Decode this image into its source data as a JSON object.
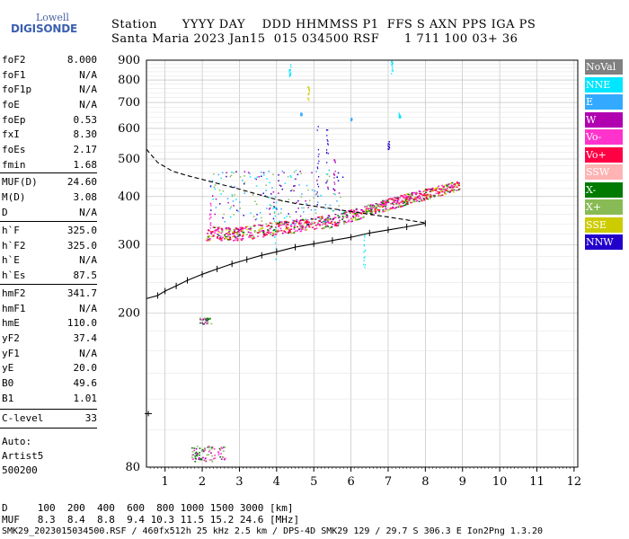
{
  "logo": {
    "line1": "Lowell",
    "line2": "DIGISONDE"
  },
  "header": {
    "line1": "Station      YYYY DAY    DDD HHMMSS P1  FFS S AXN PPS IGA PS",
    "line2": "Santa Maria 2023 Jan15  015 034500 RSF      1 711 100 03+ 36"
  },
  "params": [
    {
      "name": "foF2",
      "value": "8.000"
    },
    {
      "name": "foF1",
      "value": "N/A"
    },
    {
      "name": "foF1p",
      "value": "N/A"
    },
    {
      "name": "foE",
      "value": "N/A"
    },
    {
      "name": "foEp",
      "value": "0.53"
    },
    {
      "name": "fxI",
      "value": "8.30"
    },
    {
      "name": "foEs",
      "value": "2.17"
    },
    {
      "name": "fmin",
      "value": "1.68"
    },
    {
      "name": "MUF(D)",
      "value": "24.60"
    },
    {
      "name": "M(D)",
      "value": "3.08"
    },
    {
      "name": "D",
      "value": "N/A"
    },
    {
      "name": "h`F",
      "value": "325.0"
    },
    {
      "name": "h`F2",
      "value": "325.0"
    },
    {
      "name": "h`E",
      "value": "N/A"
    },
    {
      "name": "h`Es",
      "value": "87.5"
    },
    {
      "name": "hmF2",
      "value": "341.7"
    },
    {
      "name": "hmF1",
      "value": "N/A"
    },
    {
      "name": "hmE",
      "value": "110.0"
    },
    {
      "name": "yF2",
      "value": "37.4"
    },
    {
      "name": "yF1",
      "value": "N/A"
    },
    {
      "name": "yE",
      "value": "20.0"
    },
    {
      "name": "B0",
      "value": "49.6"
    },
    {
      "name": "B1",
      "value": "1.01"
    },
    {
      "name": "C-level",
      "value": "33"
    }
  ],
  "auto": {
    "line1": "Auto:",
    "line2": "Artist5",
    "line3": "500200"
  },
  "legend": [
    {
      "label": "NoVal",
      "bg": "#808080",
      "fg": "#ffffff"
    },
    {
      "label": "NNE",
      "bg": "#00e6ff",
      "fg": "#ffffff"
    },
    {
      "label": "E",
      "bg": "#33aaff",
      "fg": "#ffffff"
    },
    {
      "label": "W",
      "bg": "#b000b0",
      "fg": "#ffffff"
    },
    {
      "label": "Vo-",
      "bg": "#ff33cc",
      "fg": "#ffffff"
    },
    {
      "label": "Vo+",
      "bg": "#ff0044",
      "fg": "#ffffff"
    },
    {
      "label": "SSW",
      "bg": "#ffb3b3",
      "fg": "#ffffff"
    },
    {
      "label": "X-",
      "bg": "#007a00",
      "fg": "#ffffff"
    },
    {
      "label": "X+",
      "bg": "#88bb55",
      "fg": "#ffffff"
    },
    {
      "label": "SSE",
      "bg": "#cccc00",
      "fg": "#ffffff"
    },
    {
      "label": "NNW",
      "bg": "#2200cc",
      "fg": "#ffffff"
    }
  ],
  "footer": {
    "line1": "D     100  200  400  600  800 1000 1500 3000 [km]",
    "line2": "MUF   8.3  8.4  8.8  9.4 10.3 11.5 15.2 24.6 [MHz]",
    "line3": "SMK29_2023015034500.RSF / 460fx512h 25 kHz 2.5 km / DPS-4D SMK29 129 / 29.7 S 306.3 E Ion2Png 1.3.20"
  },
  "chart_data": {
    "type": "scatter",
    "title": "",
    "xlabel": "",
    "ylabel": "",
    "xlim": [
      0.5,
      12.1
    ],
    "ylim": [
      80,
      900
    ],
    "y_scale": "log",
    "x_ticks": [
      1,
      2,
      3,
      4,
      5,
      6,
      7,
      8,
      9,
      10,
      11,
      12
    ],
    "y_ticks": [
      80,
      200,
      300,
      400,
      500,
      600,
      700,
      800,
      900
    ],
    "grid": true,
    "series": [
      {
        "name": "hmF2 profile (dashed)",
        "style": "dashed",
        "color": "#000000",
        "points": [
          [
            0.5,
            530
          ],
          [
            0.8,
            490
          ],
          [
            1.2,
            465
          ],
          [
            1.6,
            453
          ],
          [
            2.0,
            443
          ],
          [
            2.5,
            430
          ],
          [
            3.0,
            418
          ],
          [
            3.5,
            405
          ],
          [
            4.0,
            393
          ],
          [
            4.5,
            384
          ],
          [
            5.0,
            378
          ],
          [
            5.5,
            372
          ],
          [
            6.0,
            366
          ],
          [
            6.5,
            360
          ],
          [
            7.0,
            354
          ],
          [
            7.5,
            348
          ],
          [
            8.0,
            342
          ]
        ]
      },
      {
        "name": "true height profile",
        "style": "solid-ticked",
        "color": "#000000",
        "points": [
          [
            0.5,
            218
          ],
          [
            0.8,
            222
          ],
          [
            1.0,
            228
          ],
          [
            1.3,
            235
          ],
          [
            1.6,
            243
          ],
          [
            2.0,
            252
          ],
          [
            2.4,
            260
          ],
          [
            2.8,
            268
          ],
          [
            3.2,
            275
          ],
          [
            3.6,
            282
          ],
          [
            4.0,
            288
          ],
          [
            4.5,
            296
          ],
          [
            5.0,
            302
          ],
          [
            5.5,
            308
          ],
          [
            6.0,
            314
          ],
          [
            6.5,
            322
          ],
          [
            7.0,
            328
          ],
          [
            7.5,
            334
          ],
          [
            8.0,
            341
          ]
        ]
      }
    ],
    "echo_clusters": [
      {
        "label": "F2 trace",
        "x": [
          2.1,
          8.8
        ],
        "y": [
          320,
          425
        ]
      },
      {
        "label": "Es low",
        "x": [
          1.7,
          2.6
        ],
        "y": [
          82,
          92
        ]
      },
      {
        "label": "Es mid",
        "x": [
          1.9,
          2.2
        ],
        "y": [
          188,
          196
        ]
      }
    ],
    "markers": [
      {
        "x": 0.55,
        "y": 110,
        "label": "foEp marker"
      }
    ]
  }
}
